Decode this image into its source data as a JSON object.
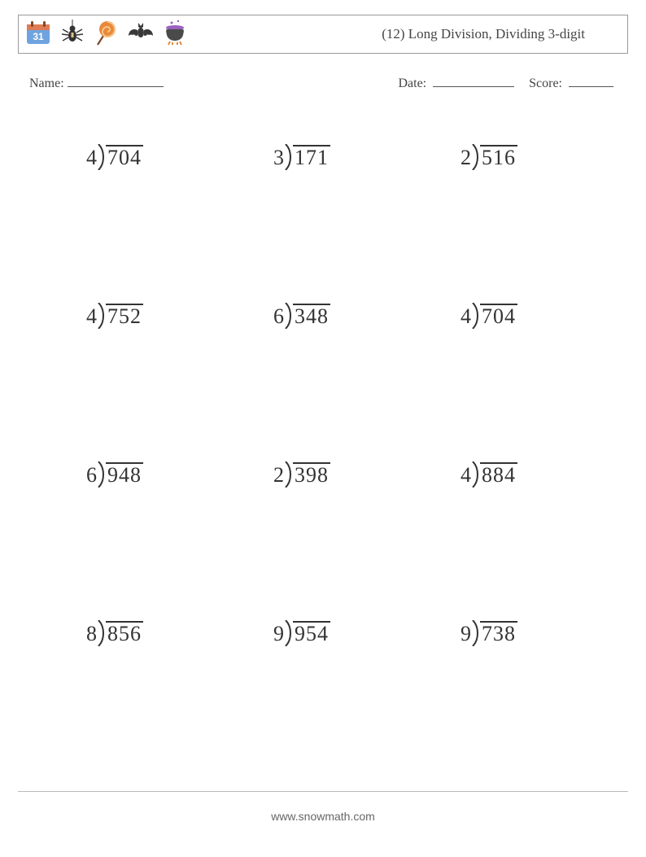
{
  "header": {
    "title": "(12) Long Division, Dividing 3-digit",
    "icons": [
      "calendar-31-icon",
      "spider-icon",
      "lollipop-icon",
      "bat-icon",
      "cauldron-icon"
    ]
  },
  "meta": {
    "name_label": "Name:",
    "date_label": "Date:",
    "score_label": "Score:"
  },
  "worksheet": {
    "type": "long-division-grid",
    "columns": 3,
    "rows": 4,
    "font_size_pt": 26,
    "text_color": "#333333",
    "overline_color": "#333333",
    "background_color": "#ffffff",
    "problems": [
      {
        "divisor": "4",
        "dividend": "704"
      },
      {
        "divisor": "3",
        "dividend": "171"
      },
      {
        "divisor": "2",
        "dividend": "516"
      },
      {
        "divisor": "4",
        "dividend": "752"
      },
      {
        "divisor": "6",
        "dividend": "348"
      },
      {
        "divisor": "4",
        "dividend": "704"
      },
      {
        "divisor": "6",
        "dividend": "948"
      },
      {
        "divisor": "2",
        "dividend": "398"
      },
      {
        "divisor": "4",
        "dividend": "884"
      },
      {
        "divisor": "8",
        "dividend": "856"
      },
      {
        "divisor": "9",
        "dividend": "954"
      },
      {
        "divisor": "9",
        "dividend": "738"
      }
    ]
  },
  "footer": {
    "text": "www.snowmath.com"
  },
  "icon_colors": {
    "calendar_body": "#6fa3e0",
    "calendar_top": "#e07b53",
    "spider": "#333333",
    "lollipop": "#e8893a",
    "lollipop_stick": "#7a4a2a",
    "bat": "#3a3a3a",
    "cauldron": "#4a4a4a",
    "cauldron_liquid": "#9b5fc0",
    "cauldron_fire": "#e8893a"
  }
}
